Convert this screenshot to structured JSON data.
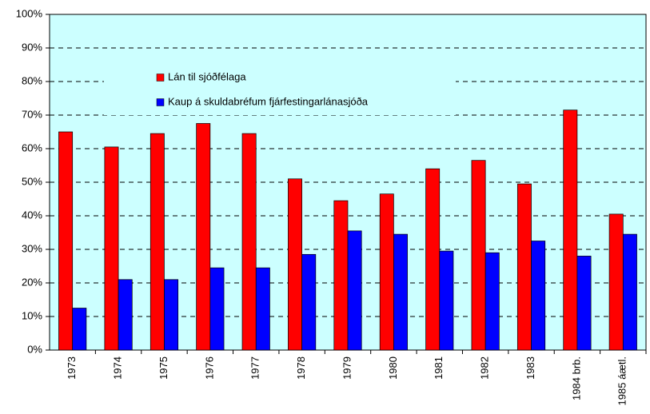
{
  "chart_data": {
    "type": "bar",
    "categories": [
      "1973",
      "1974",
      "1975",
      "1976",
      "1977",
      "1978",
      "1979",
      "1980",
      "1981",
      "1982",
      "1983",
      "1984 brb.",
      "1985 áætl."
    ],
    "series": [
      {
        "name": "Lán til sjóðfélaga",
        "color": "#ff0000",
        "values": [
          65,
          60.5,
          64.5,
          67.5,
          64.5,
          51,
          44.5,
          46.5,
          54,
          56.5,
          49.5,
          71.5,
          40.5
        ]
      },
      {
        "name": "Kaup á skuldabréfum fjárfestingarlánasjóða",
        "color": "#0000ff",
        "values": [
          12.5,
          21,
          21,
          24.5,
          24.5,
          28.5,
          35.5,
          34.5,
          29.5,
          29,
          32.5,
          28,
          34.5
        ]
      }
    ],
    "ylim": [
      0,
      100
    ],
    "yticks": [
      {
        "value": 0,
        "label": "0%"
      },
      {
        "value": 10,
        "label": "10%"
      },
      {
        "value": 20,
        "label": "20%"
      },
      {
        "value": 30,
        "label": "30%"
      },
      {
        "value": 40,
        "label": "40%"
      },
      {
        "value": 50,
        "label": "50%"
      },
      {
        "value": 60,
        "label": "60%"
      },
      {
        "value": 70,
        "label": "70%"
      },
      {
        "value": 80,
        "label": "80%"
      },
      {
        "value": 90,
        "label": "90%"
      },
      {
        "value": 100,
        "label": "100%"
      }
    ],
    "grid": true,
    "background": "#ccffff"
  }
}
